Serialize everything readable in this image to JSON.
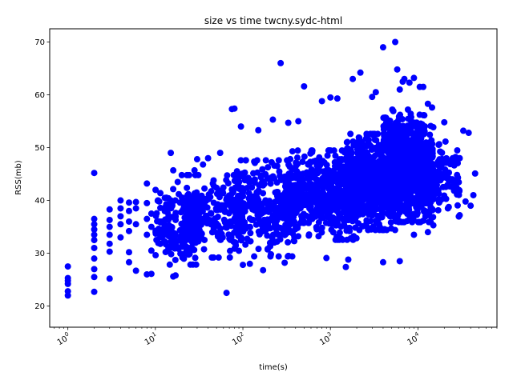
{
  "chart_data": {
    "type": "scatter",
    "title": "size vs time twcny.sydc-html",
    "xlabel": "time(s)",
    "ylabel": "RSS(mb)",
    "x_scale": "log",
    "xlim": [
      0.62,
      80000
    ],
    "ylim": [
      16,
      72.5
    ],
    "x_ticks": [
      {
        "value": 1,
        "label": "10^0"
      },
      {
        "value": 10,
        "label": "10^1"
      },
      {
        "value": 100,
        "label": "10^2"
      },
      {
        "value": 1000,
        "label": "10^3"
      },
      {
        "value": 10000,
        "label": "10^4"
      }
    ],
    "y_ticks": [
      20,
      30,
      40,
      50,
      60,
      70
    ],
    "grid": false,
    "marker_color": "#0000ff",
    "series": [
      {
        "points": [
          [
            1,
            22
          ],
          [
            1,
            22.8
          ],
          [
            1,
            24.2
          ],
          [
            1,
            24.8
          ],
          [
            1,
            25.3
          ],
          [
            1,
            27.5
          ],
          [
            2,
            22.7
          ],
          [
            2,
            25.5
          ],
          [
            2,
            27
          ],
          [
            2,
            29
          ],
          [
            2,
            31
          ],
          [
            2,
            32.5
          ],
          [
            2,
            33.5
          ],
          [
            2,
            34.5
          ],
          [
            2,
            35.5
          ],
          [
            2,
            36.5
          ],
          [
            2,
            45.2
          ],
          [
            3,
            25.2
          ],
          [
            3,
            30.3
          ],
          [
            3,
            31.8
          ],
          [
            3,
            33.5
          ],
          [
            3,
            35
          ],
          [
            3,
            36.3
          ],
          [
            3,
            38.3
          ],
          [
            4,
            33
          ],
          [
            4,
            35.5
          ],
          [
            4,
            37
          ],
          [
            4,
            38.5
          ],
          [
            4,
            40
          ],
          [
            5,
            28.3
          ],
          [
            5,
            30.2
          ],
          [
            5,
            34.2
          ],
          [
            5,
            36
          ],
          [
            5,
            38
          ],
          [
            5,
            39.6
          ],
          [
            6,
            26.7
          ],
          [
            6,
            35.5
          ],
          [
            6,
            38.5
          ],
          [
            6,
            39.7
          ],
          [
            8,
            26
          ],
          [
            8,
            33.5
          ],
          [
            8,
            36.5
          ],
          [
            8,
            39.5
          ],
          [
            8,
            43.2
          ],
          [
            9,
            26.1
          ],
          [
            9,
            30.5
          ],
          [
            9,
            35
          ],
          [
            9,
            37.5
          ],
          [
            15,
            49
          ],
          [
            16,
            45.7
          ],
          [
            16,
            25.6
          ],
          [
            17,
            25.8
          ],
          [
            18,
            43.5
          ],
          [
            28,
            45.7
          ],
          [
            30,
            47.8
          ],
          [
            35,
            46.8
          ],
          [
            40,
            48
          ],
          [
            55,
            49
          ],
          [
            65,
            22.5
          ],
          [
            75,
            57.3
          ],
          [
            80,
            57.4
          ],
          [
            95,
            54
          ],
          [
            150,
            53.3
          ],
          [
            220,
            55.3
          ],
          [
            270,
            66
          ],
          [
            330,
            54.7
          ],
          [
            430,
            55
          ],
          [
            500,
            61.6
          ],
          [
            800,
            58.8
          ],
          [
            1000,
            59.5
          ],
          [
            1200,
            59.3
          ],
          [
            1800,
            63
          ],
          [
            2200,
            64.2
          ],
          [
            3000,
            59.6
          ],
          [
            3300,
            60.5
          ],
          [
            4000,
            69
          ],
          [
            5500,
            70
          ],
          [
            5800,
            64.8
          ],
          [
            6200,
            61
          ],
          [
            6700,
            62.5
          ],
          [
            7000,
            63
          ],
          [
            8000,
            62.3
          ],
          [
            9000,
            63.2
          ],
          [
            10500,
            61.5
          ],
          [
            11500,
            61.5
          ],
          [
            13000,
            58.3
          ],
          [
            14500,
            57.6
          ],
          [
            20000,
            54.8
          ],
          [
            25000,
            48
          ],
          [
            30000,
            48
          ],
          [
            33000,
            53.2
          ],
          [
            38000,
            52.8
          ],
          [
            45000,
            45.1
          ],
          [
            43000,
            41
          ],
          [
            40000,
            39
          ],
          [
            35000,
            39.8
          ],
          [
            30000,
            37.2
          ],
          [
            26000,
            42.2
          ],
          [
            22000,
            38.5
          ],
          [
            18000,
            40
          ],
          [
            15000,
            35.3
          ],
          [
            13000,
            34
          ],
          [
            9000,
            33.5
          ],
          [
            6200,
            28.5
          ],
          [
            4000,
            28.3
          ],
          [
            1500,
            27.4
          ],
          [
            1600,
            28.8
          ],
          [
            900,
            29.1
          ],
          [
            300,
            28.2
          ],
          [
            170,
            26.8
          ],
          [
            120,
            28
          ],
          [
            100,
            27.8
          ]
        ]
      }
    ],
    "clusters": [
      {
        "x_range": [
          10,
          30
        ],
        "y_center": 35,
        "y_spread": 5.5,
        "count": 170
      },
      {
        "x_range": [
          20,
          100
        ],
        "y_center": 37,
        "y_spread": 6,
        "count": 220
      },
      {
        "x_range": [
          80,
          400
        ],
        "y_center": 38.5,
        "y_spread": 7,
        "count": 300
      },
      {
        "x_range": [
          300,
          2000
        ],
        "y_center": 41,
        "y_spread": 6.5,
        "count": 550
      },
      {
        "x_range": [
          1500,
          6000
        ],
        "y_center": 43.5,
        "y_spread": 7,
        "count": 850
      },
      {
        "x_range": [
          5000,
          15000
        ],
        "y_center": 45,
        "y_spread": 7,
        "count": 650
      },
      {
        "x_range": [
          12000,
          30000
        ],
        "y_center": 44,
        "y_spread": 5.5,
        "count": 120
      },
      {
        "x_range": [
          4000,
          12000
        ],
        "y_center": 52,
        "y_spread": 4,
        "count": 200
      }
    ]
  }
}
